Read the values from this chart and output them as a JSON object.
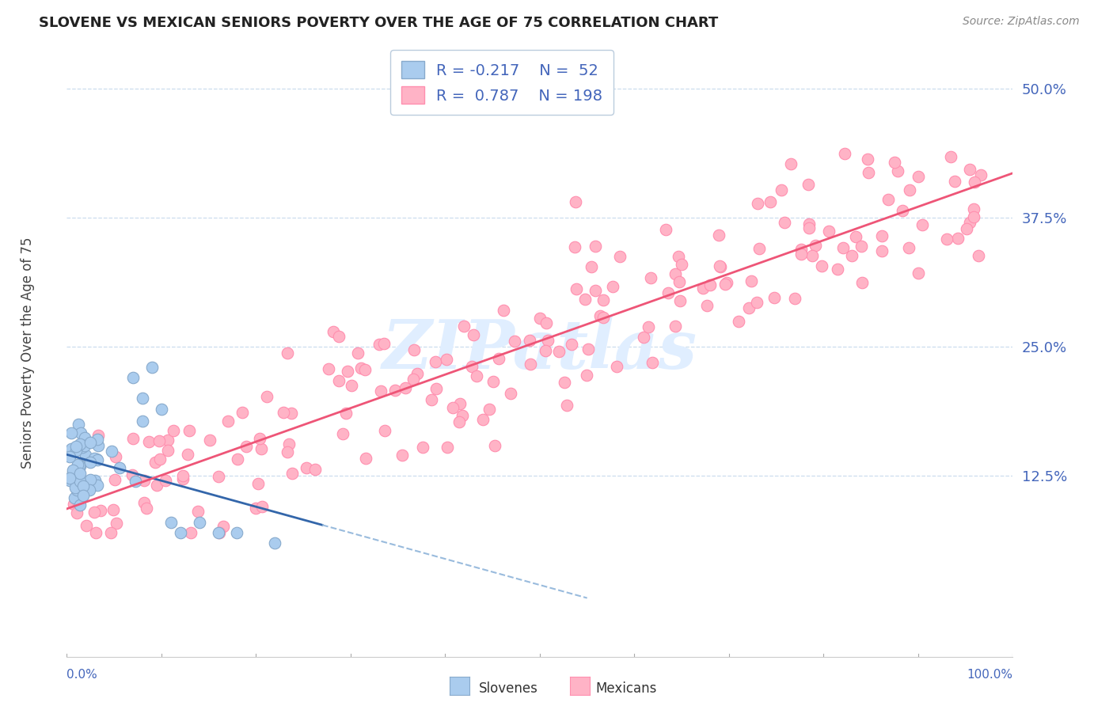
{
  "title": "SLOVENE VS MEXICAN SENIORS POVERTY OVER THE AGE OF 75 CORRELATION CHART",
  "source": "Source: ZipAtlas.com",
  "ylabel": "Seniors Poverty Over the Age of 75",
  "yticks": [
    0.0,
    0.125,
    0.25,
    0.375,
    0.5
  ],
  "ytick_labels": [
    "",
    "12.5%",
    "25.0%",
    "37.5%",
    "50.0%"
  ],
  "xlim": [
    0.0,
    1.0
  ],
  "ylim": [
    -0.05,
    0.545
  ],
  "legend_R1": "-0.217",
  "legend_N1": "52",
  "legend_R2": "0.787",
  "legend_N2": "198",
  "slovene_color": "#AACCEE",
  "slovene_edge_color": "#88AACC",
  "mexican_color": "#FFB3C6",
  "mexican_edge_color": "#FF8FAF",
  "slovene_line_color": "#3366AA",
  "mexican_line_color": "#EE5577",
  "dashed_line_color": "#99BBDD",
  "background_color": "#FFFFFF",
  "axis_label_color": "#4466BB",
  "title_color": "#222222",
  "watermark_color": "#E0EEFF",
  "grid_color": "#CCDDEE",
  "source_color": "#888888"
}
